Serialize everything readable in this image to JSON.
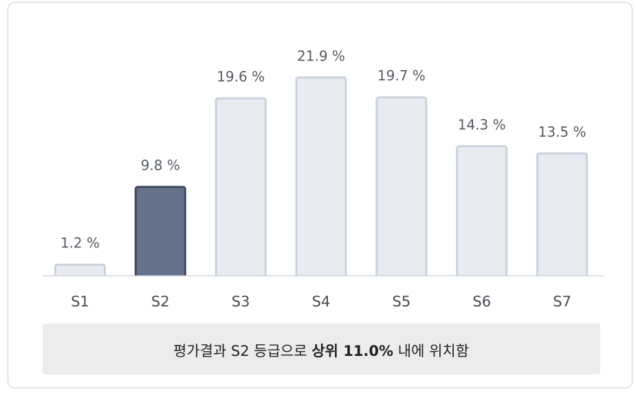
{
  "chart_data": {
    "type": "bar",
    "categories": [
      "S1",
      "S2",
      "S3",
      "S4",
      "S5",
      "S6",
      "S7"
    ],
    "values": [
      1.2,
      9.8,
      19.6,
      21.9,
      19.7,
      14.3,
      13.5
    ],
    "value_labels": [
      "1.2 %",
      "9.8 %",
      "19.6 %",
      "21.9 %",
      "19.7 %",
      "14.3 %",
      "13.5 %"
    ],
    "colors": [
      "#e8ecf0",
      "#647189",
      "#e8ecf0",
      "#e8ecf0",
      "#e8ecf0",
      "#e8ecf0",
      "#e8ecf0"
    ],
    "edgecolors": [
      "#c9d3de",
      "#3e4861",
      "#c9d3de",
      "#c9d3de",
      "#c9d3de",
      "#c9d3de",
      "#c9d3de"
    ],
    "ylim": [
      0,
      25
    ],
    "annotation": {
      "before": "평가결과 S2 등급으로",
      "bold": "상위 11.0%",
      "after": "내에 위치함"
    }
  }
}
